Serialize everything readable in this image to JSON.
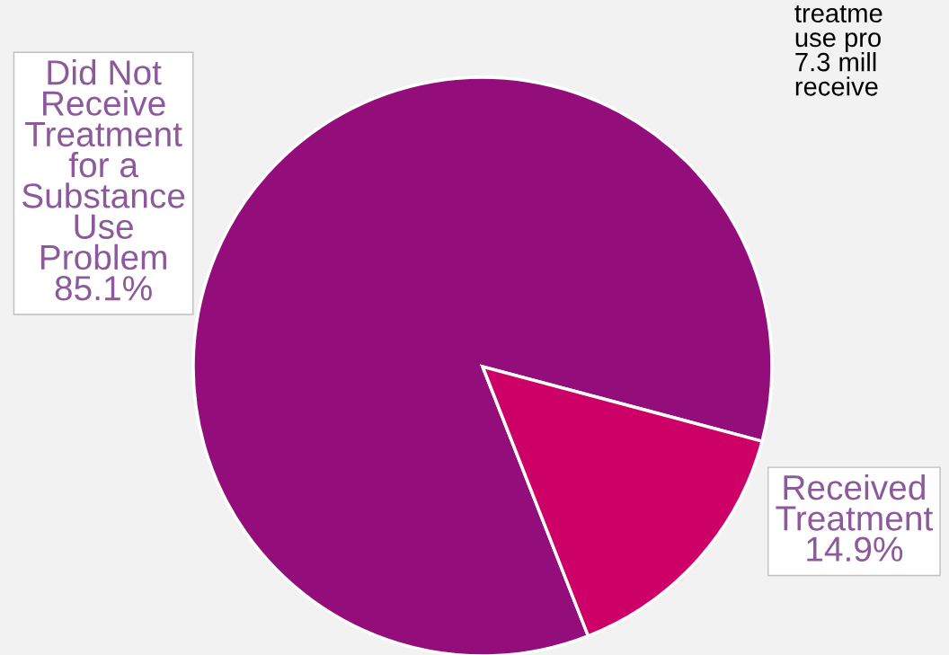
{
  "chart_data": {
    "type": "pie",
    "categories": [
      "Did Not\nReceive\nTreatment\nfor a\nSubstance\nUse\nProblem",
      "Received\nTreatment"
    ],
    "values": [
      85.1,
      14.9
    ],
    "value_labels": [
      "85.1%",
      "14.9%"
    ],
    "colors": [
      "#930e7a",
      "#cc0066"
    ],
    "annotations": [
      "treatme\nuse pro\n7.3 mill\nreceive"
    ],
    "legend": false
  }
}
